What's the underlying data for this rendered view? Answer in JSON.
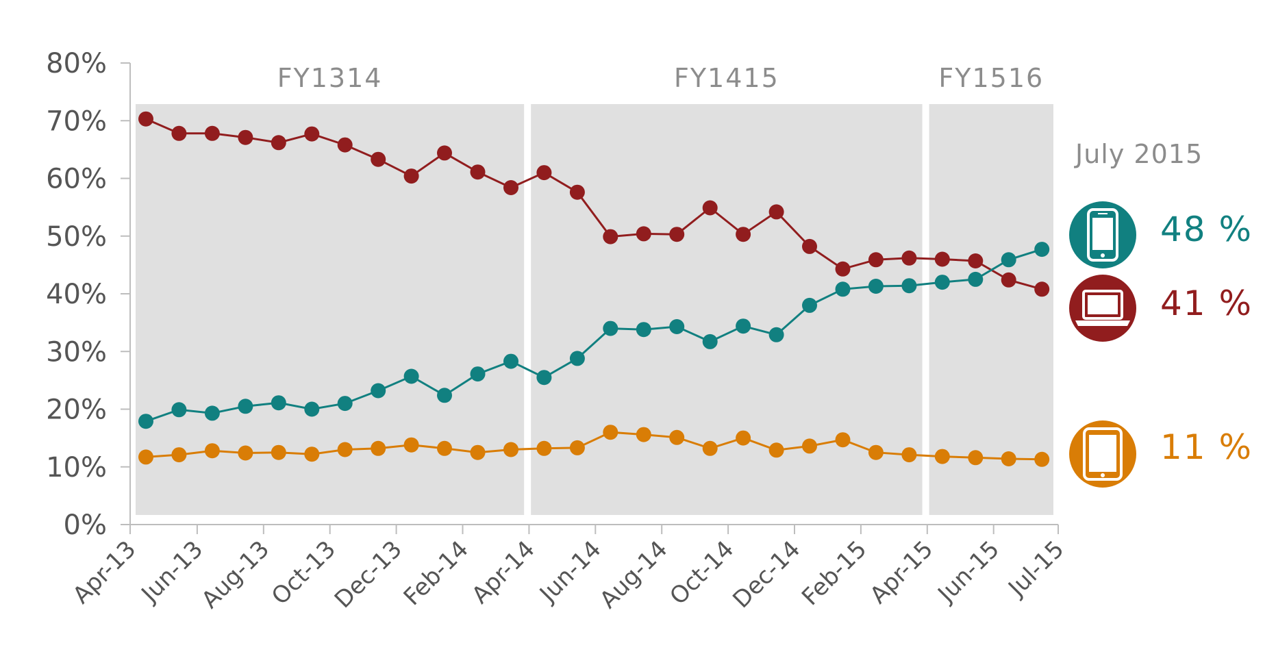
{
  "colors": {
    "mobile": "#118080",
    "desktop": "#911d1e",
    "tablet": "#d97d06",
    "band": "#e0e0e0",
    "axis": "#bdbdbd",
    "text": "#555555",
    "muted": "#8c8c8c"
  },
  "fiscal_years": [
    {
      "label": "FY1314",
      "start": 0,
      "end": 12
    },
    {
      "label": "FY1415",
      "start": 12,
      "end": 24
    },
    {
      "label": "FY1516",
      "start": 24,
      "end": 28
    }
  ],
  "legend": {
    "date": "July 2015",
    "items": [
      {
        "series": "mobile",
        "icon": "smartphone-icon",
        "value": "48 %",
        "color": "#118080"
      },
      {
        "series": "desktop",
        "icon": "laptop-icon",
        "value": "41 %",
        "color": "#911d1e"
      },
      {
        "series": "tablet",
        "icon": "tablet-icon",
        "value": "11 %",
        "color": "#d97d06"
      }
    ]
  },
  "chart_data": {
    "type": "line",
    "title": "",
    "xlabel": "",
    "ylabel": "",
    "ylim": [
      0,
      80
    ],
    "y_ticks": [
      "0%",
      "10%",
      "20%",
      "30%",
      "40%",
      "50%",
      "60%",
      "70%",
      "80%"
    ],
    "x_tick_labels": [
      "Apr-13",
      "Jun-13",
      "Aug-13",
      "Oct-13",
      "Dec-13",
      "Feb-14",
      "Apr-14",
      "Jun-14",
      "Aug-14",
      "Oct-14",
      "Dec-14",
      "Feb-15",
      "Apr-15",
      "Jun-15",
      "Jul-15"
    ],
    "categories": [
      "Apr-13",
      "May-13",
      "Jun-13",
      "Jul-13",
      "Aug-13",
      "Sep-13",
      "Oct-13",
      "Nov-13",
      "Dec-13",
      "Jan-14",
      "Feb-14",
      "Mar-14",
      "Apr-14",
      "May-14",
      "Jun-14",
      "Jul-14",
      "Aug-14",
      "Sep-14",
      "Oct-14",
      "Nov-14",
      "Dec-14",
      "Jan-15",
      "Feb-15",
      "Mar-15",
      "Apr-15",
      "May-15",
      "Jun-15",
      "Jul-15"
    ],
    "grid": false,
    "series": [
      {
        "key": "desktop",
        "color": "#911d1e",
        "values": [
          70.3,
          67.8,
          67.8,
          67.1,
          66.2,
          67.7,
          65.8,
          63.3,
          60.4,
          64.4,
          61.1,
          58.4,
          61.0,
          57.6,
          49.9,
          50.4,
          50.3,
          54.9,
          50.3,
          54.2,
          48.2,
          44.3,
          45.9,
          46.2,
          46.0,
          45.7,
          42.4,
          40.8
        ]
      },
      {
        "key": "mobile",
        "color": "#118080",
        "values": [
          17.9,
          19.9,
          19.3,
          20.5,
          21.1,
          20.0,
          21.0,
          23.2,
          25.7,
          22.4,
          26.1,
          28.3,
          25.5,
          28.8,
          34.0,
          33.8,
          34.3,
          31.7,
          34.4,
          32.9,
          38.0,
          40.8,
          41.3,
          41.4,
          42.0,
          42.5,
          45.9,
          47.7
        ]
      },
      {
        "key": "tablet",
        "color": "#d97d06",
        "values": [
          11.7,
          12.1,
          12.8,
          12.4,
          12.5,
          12.2,
          13.0,
          13.2,
          13.8,
          13.2,
          12.5,
          13.0,
          13.2,
          13.3,
          16.0,
          15.6,
          15.1,
          13.2,
          15.0,
          12.9,
          13.6,
          14.7,
          12.5,
          12.1,
          11.8,
          11.6,
          11.4,
          11.3
        ]
      }
    ]
  }
}
